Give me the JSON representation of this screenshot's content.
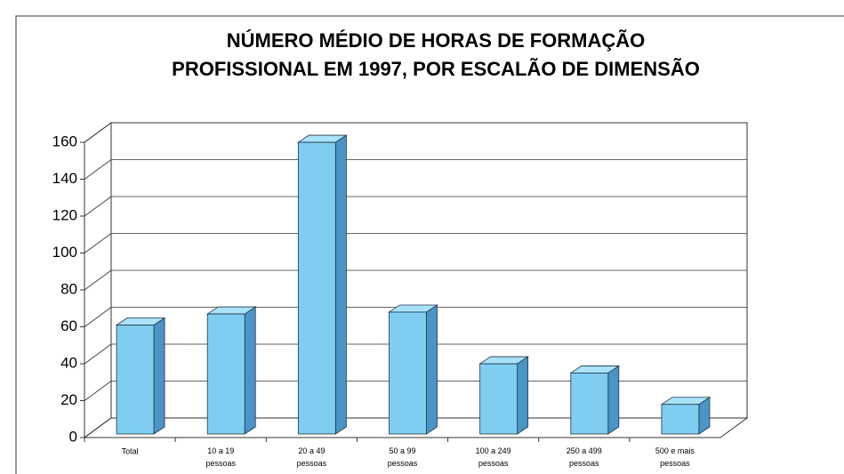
{
  "chart_data": {
    "type": "bar",
    "title": [
      "NÚMERO MÉDIO DE HORAS DE FORMAÇÃO",
      "PROFISSIONAL EM 1997, POR ESCALÃO DE DIMENSÃO"
    ],
    "categories": [
      "Total",
      "10 a 19 pessoas",
      "20 a 49 pessoas",
      "50 a 99 pessoas",
      "100 a 249 pessoas",
      "250 a 499 pessoas",
      "500 e mais pessoas"
    ],
    "values": [
      60,
      66,
      159,
      67,
      39,
      34,
      17
    ],
    "color": "#7fcdf0",
    "ylim": [
      0,
      160
    ],
    "yticks": [
      0,
      20,
      40,
      60,
      80,
      100,
      120,
      140,
      160
    ],
    "grid": true
  }
}
